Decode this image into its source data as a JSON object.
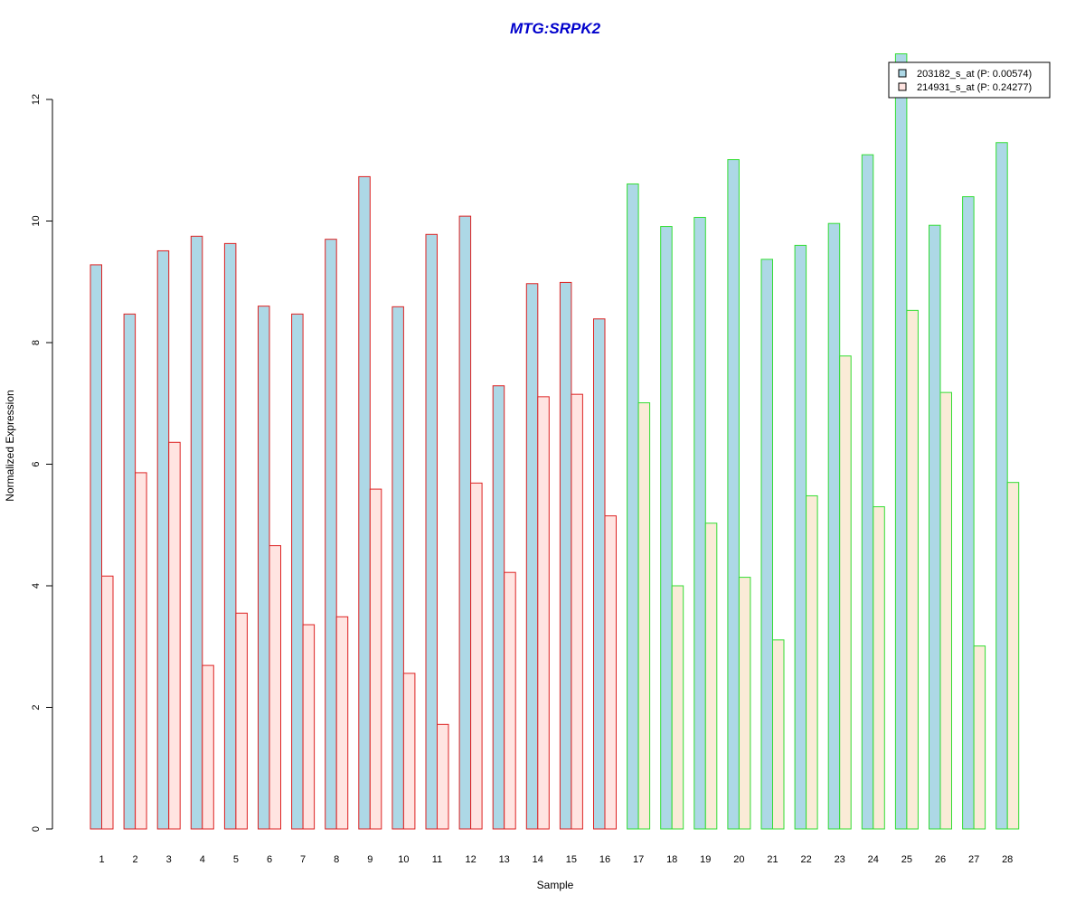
{
  "chart_data": {
    "type": "bar",
    "title": "MTG:SRPK2",
    "xlabel": "Sample",
    "ylabel": "Normalized Expression",
    "ylim": [
      0,
      12.8
    ],
    "yticks": [
      "0",
      "2",
      "4",
      "6",
      "8",
      "10",
      "12"
    ],
    "categories": [
      "1",
      "2",
      "3",
      "4",
      "5",
      "6",
      "7",
      "8",
      "9",
      "10",
      "11",
      "12",
      "13",
      "14",
      "15",
      "16",
      "17",
      "18",
      "19",
      "20",
      "21",
      "22",
      "23",
      "24",
      "25",
      "26",
      "27",
      "28"
    ],
    "group_outline_colors": [
      "#dd2222",
      "#dd2222",
      "#dd2222",
      "#dd2222",
      "#dd2222",
      "#dd2222",
      "#dd2222",
      "#dd2222",
      "#dd2222",
      "#dd2222",
      "#dd2222",
      "#dd2222",
      "#dd2222",
      "#dd2222",
      "#dd2222",
      "#dd2222",
      "#33dd33",
      "#33dd33",
      "#33dd33",
      "#33dd33",
      "#33dd33",
      "#33dd33",
      "#33dd33",
      "#33dd33",
      "#33dd33",
      "#33dd33",
      "#33dd33",
      "#33dd33"
    ],
    "series": [
      {
        "name": "203182_s_at (P: 0.00574)",
        "fill": "#add8e6",
        "values": [
          9.28,
          8.47,
          9.51,
          9.75,
          9.63,
          8.6,
          8.47,
          9.7,
          10.73,
          8.59,
          9.78,
          10.08,
          7.29,
          8.97,
          8.99,
          8.39,
          10.61,
          9.91,
          10.06,
          11.01,
          9.37,
          9.6,
          9.96,
          11.09,
          12.75,
          9.93,
          10.4,
          11.29
        ]
      },
      {
        "name": "214931_s_at (P: 0.24277)",
        "fill": "#ffe4e1",
        "fill2": "#faebd7",
        "values": [
          4.16,
          5.86,
          6.36,
          2.69,
          3.55,
          4.66,
          3.36,
          3.49,
          5.59,
          2.56,
          1.72,
          5.69,
          4.22,
          7.11,
          7.15,
          5.15,
          7.01,
          4.0,
          5.03,
          4.14,
          3.11,
          5.48,
          7.78,
          5.3,
          8.53,
          7.18,
          3.01,
          5.7
        ]
      }
    ],
    "legend_position": "top-right",
    "grid": false
  }
}
